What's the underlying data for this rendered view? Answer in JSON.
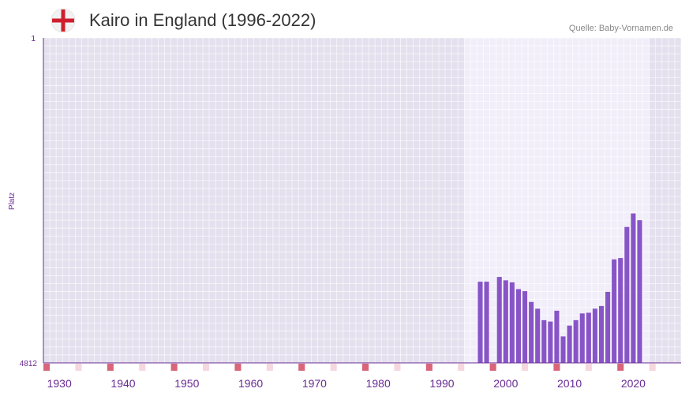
{
  "header": {
    "title": "Kairo in England (1996-2022)",
    "source": "Quelle: Baby-Vornamen.de"
  },
  "colors": {
    "bar": "#8855c7",
    "axis": "#6a2b94",
    "plot_bg": "#e4e0ee",
    "highlight_bg": "#f1eefa",
    "grid": "#ffffff",
    "tick_text": "#6a2b94",
    "marker_strong": "#d9657a",
    "marker_light": "#f6d7de",
    "flag_red": "#cf1f2e"
  },
  "chart_data": {
    "type": "bar",
    "title": "Kairo in England (1996-2022)",
    "xlabel": "",
    "ylabel": "Platz",
    "y_reversed": true,
    "ylim": [
      1,
      4812
    ],
    "y_ticks": [
      "1",
      "4812"
    ],
    "xlim": [
      1928,
      2028
    ],
    "x_ticks": [
      1930,
      1940,
      1950,
      1960,
      1970,
      1980,
      1990,
      2000,
      2010,
      2020
    ],
    "highlight_range": [
      1994,
      2022
    ],
    "x": [
      1996,
      1997,
      1998,
      1999,
      2000,
      2001,
      2002,
      2003,
      2004,
      2005,
      2006,
      2007,
      2008,
      2009,
      2010,
      2011,
      2012,
      2013,
      2014,
      2015,
      2016,
      2017,
      2018,
      2019,
      2020,
      2021,
      2022
    ],
    "values": [
      3610,
      3610,
      null,
      3540,
      3590,
      3620,
      3720,
      3750,
      3910,
      4010,
      4180,
      4200,
      4040,
      4420,
      4260,
      4180,
      4080,
      4070,
      4010,
      3970,
      3760,
      3280,
      3260,
      2800,
      2600,
      2700,
      null
    ]
  }
}
